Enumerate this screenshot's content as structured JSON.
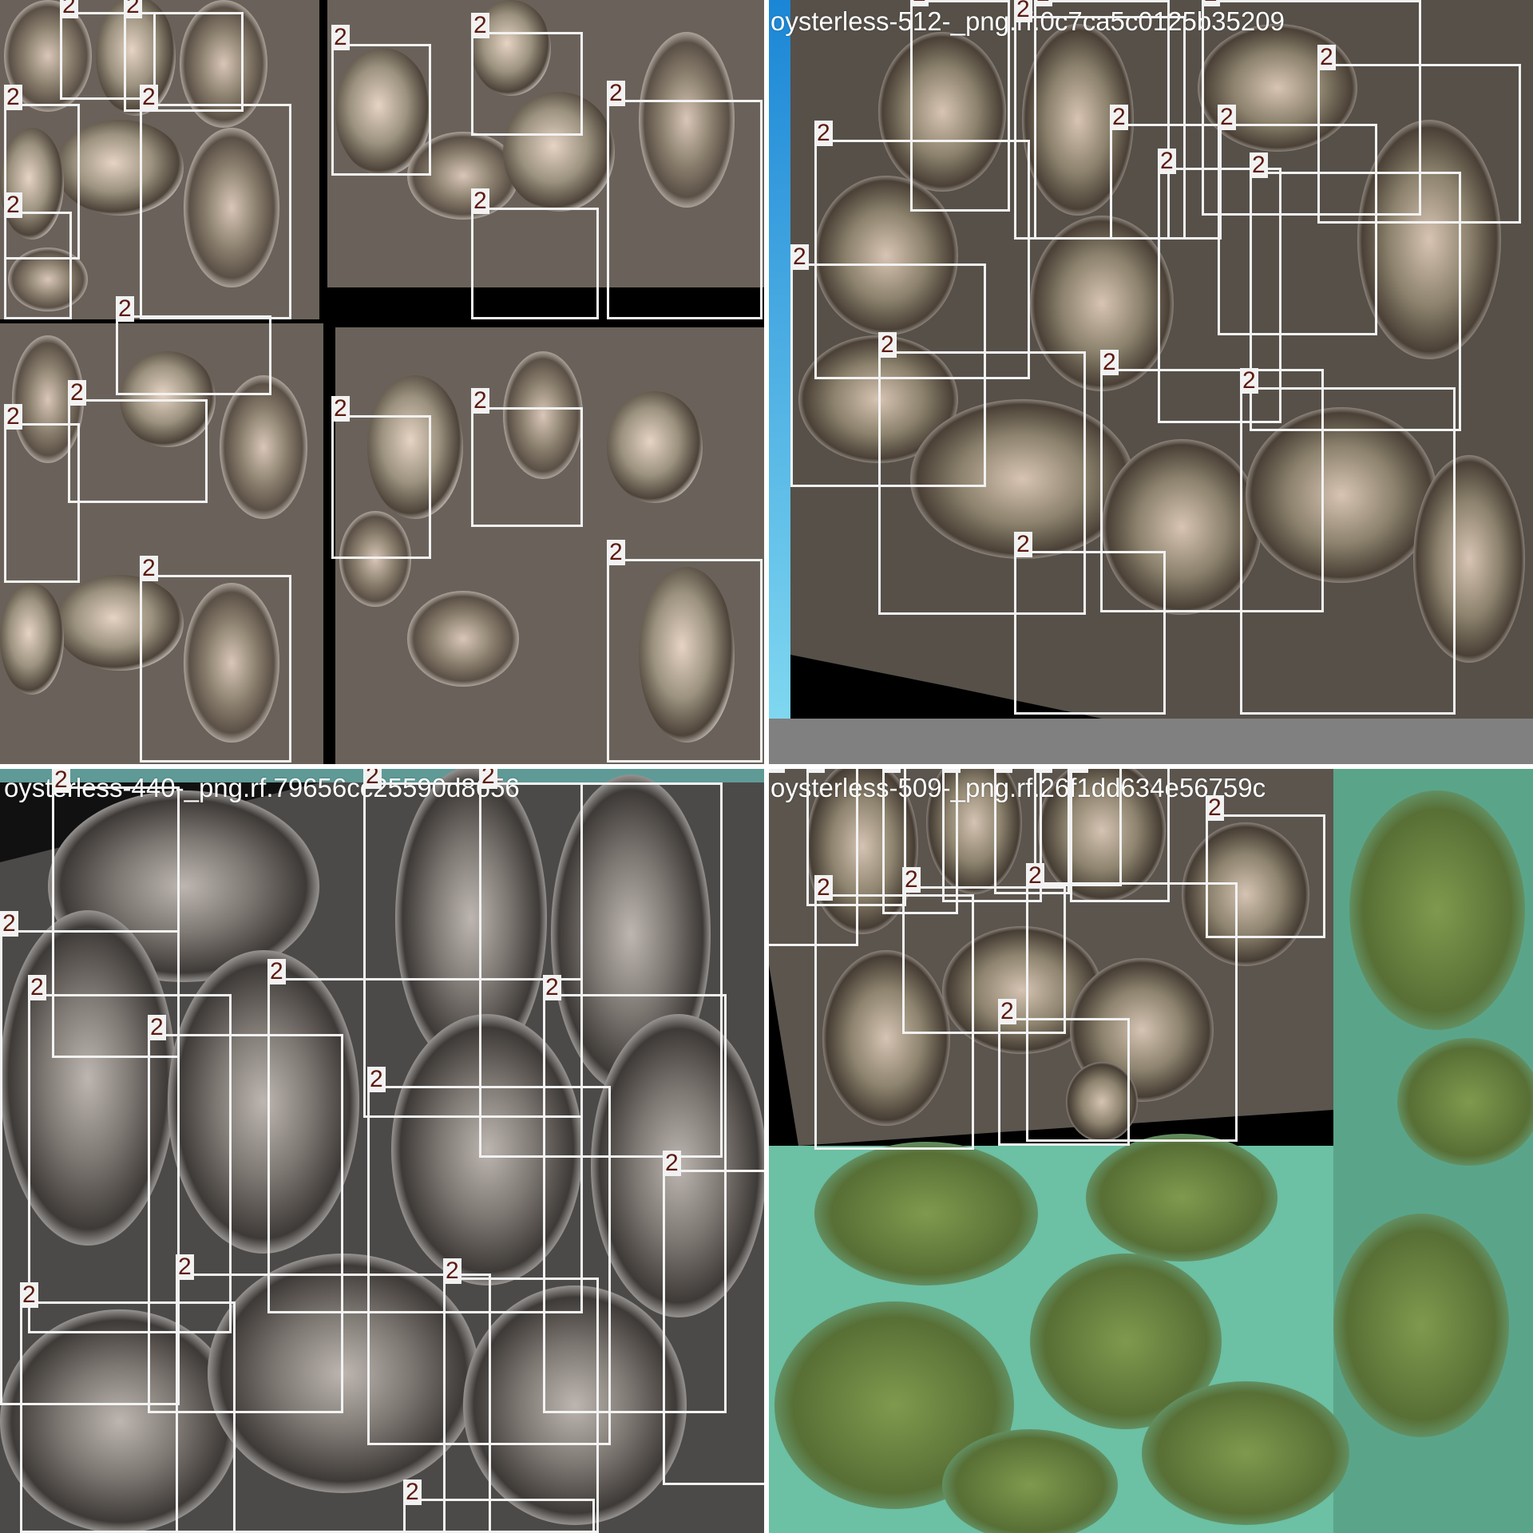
{
  "mosaic": {
    "class_label": "2",
    "box_color": "#f2f2f2",
    "label_text_color": "#5c1a0e",
    "tiles": [
      {
        "id": "top-left",
        "caption": ""
      },
      {
        "id": "top-right",
        "caption": "oysterless-512-_png.rf.0c7ca5c0125b35209"
      },
      {
        "id": "bottom-left",
        "caption": "oysterless-440-_png.rf.79656cc25590d8656"
      },
      {
        "id": "bottom-right",
        "caption": "oysterless-509-_png.rf.26f1dd634e56759c"
      }
    ]
  }
}
